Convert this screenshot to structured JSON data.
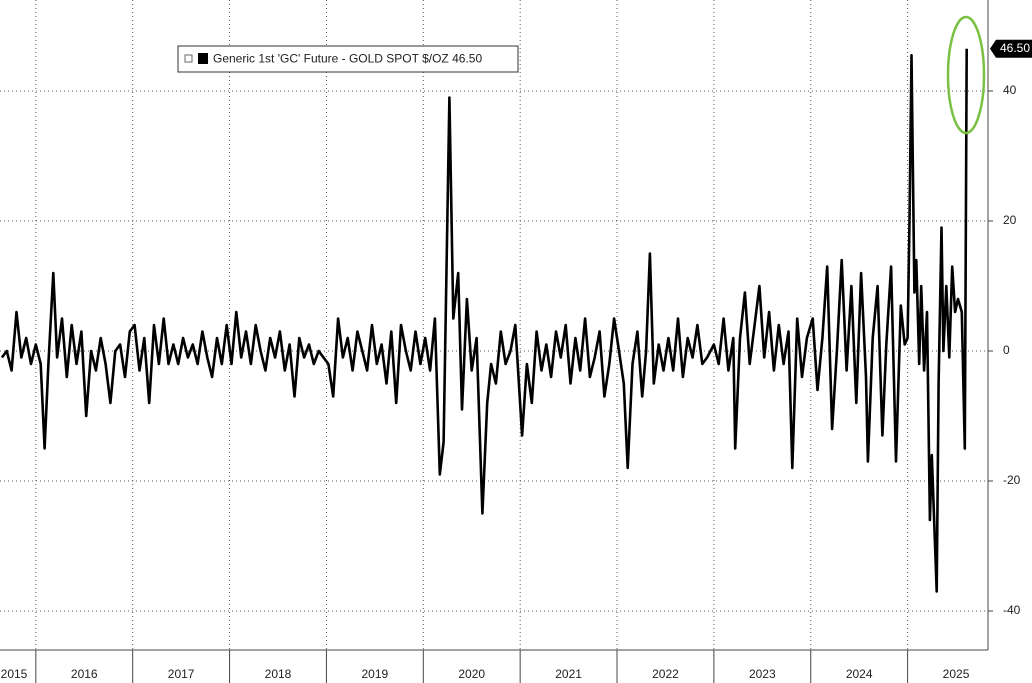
{
  "chart_data": {
    "type": "line",
    "series": [
      {
        "name": "Generic 1st 'GC' Future - GOLD SPOT $/OZ 46.50",
        "color": "#000000",
        "last_label": "46.50",
        "x": [
          2015.65,
          2015.7,
          2015.75,
          2015.8,
          2015.85,
          2015.9,
          2015.95,
          2016.0,
          2016.05,
          2016.09,
          2016.13,
          2016.18,
          2016.22,
          2016.27,
          2016.32,
          2016.37,
          2016.42,
          2016.47,
          2016.52,
          2016.57,
          2016.62,
          2016.67,
          2016.72,
          2016.77,
          2016.82,
          2016.87,
          2016.92,
          2016.97,
          2017.02,
          2017.07,
          2017.12,
          2017.17,
          2017.22,
          2017.27,
          2017.32,
          2017.37,
          2017.42,
          2017.47,
          2017.52,
          2017.57,
          2017.62,
          2017.67,
          2017.72,
          2017.77,
          2017.82,
          2017.87,
          2017.92,
          2017.97,
          2018.02,
          2018.07,
          2018.12,
          2018.17,
          2018.22,
          2018.27,
          2018.32,
          2018.37,
          2018.42,
          2018.47,
          2018.52,
          2018.57,
          2018.62,
          2018.67,
          2018.72,
          2018.77,
          2018.82,
          2018.87,
          2018.92,
          2018.97,
          2019.02,
          2019.07,
          2019.12,
          2019.17,
          2019.22,
          2019.27,
          2019.32,
          2019.37,
          2019.42,
          2019.47,
          2019.52,
          2019.57,
          2019.62,
          2019.67,
          2019.72,
          2019.77,
          2019.82,
          2019.87,
          2019.92,
          2019.97,
          2020.02,
          2020.07,
          2020.12,
          2020.17,
          2020.21,
          2020.27,
          2020.31,
          2020.36,
          2020.4,
          2020.45,
          2020.5,
          2020.55,
          2020.61,
          2020.66,
          2020.7,
          2020.75,
          2020.8,
          2020.85,
          2020.9,
          2020.95,
          2021.02,
          2021.07,
          2021.12,
          2021.17,
          2021.22,
          2021.27,
          2021.32,
          2021.37,
          2021.42,
          2021.47,
          2021.52,
          2021.57,
          2021.62,
          2021.67,
          2021.72,
          2021.77,
          2021.82,
          2021.87,
          2021.92,
          2021.97,
          2022.02,
          2022.07,
          2022.11,
          2022.16,
          2022.21,
          2022.26,
          2022.3,
          2022.34,
          2022.38,
          2022.43,
          2022.48,
          2022.53,
          2022.58,
          2022.63,
          2022.68,
          2022.73,
          2022.78,
          2022.83,
          2022.88,
          2022.93,
          2023.0,
          2023.05,
          2023.1,
          2023.15,
          2023.2,
          2023.22,
          2023.27,
          2023.32,
          2023.37,
          2023.42,
          2023.47,
          2023.52,
          2023.57,
          2023.62,
          2023.67,
          2023.72,
          2023.77,
          2023.81,
          2023.86,
          2023.91,
          2023.96,
          2024.02,
          2024.07,
          2024.12,
          2024.17,
          2024.22,
          2024.27,
          2024.32,
          2024.37,
          2024.42,
          2024.47,
          2024.52,
          2024.57,
          2024.59,
          2024.64,
          2024.69,
          2024.74,
          2024.78,
          2024.83,
          2024.88,
          2024.93,
          2024.97,
          2025.0,
          2025.02,
          2025.04,
          2025.07,
          2025.09,
          2025.12,
          2025.14,
          2025.17,
          2025.2,
          2025.23,
          2025.25,
          2025.3,
          2025.32,
          2025.35,
          2025.37,
          2025.4,
          2025.43,
          2025.46,
          2025.49,
          2025.52,
          2025.56,
          2025.59,
          2025.61
        ],
        "values": [
          -1,
          0,
          -3,
          6,
          -1,
          2,
          -2,
          1,
          -2,
          -15,
          -2,
          12,
          -1,
          5,
          -4,
          4,
          -2,
          3,
          -10,
          0,
          -3,
          2,
          -2,
          -8,
          0,
          1,
          -4,
          3,
          4,
          -3,
          2,
          -8,
          4,
          -2,
          5,
          -2,
          1,
          -2,
          2,
          -1,
          1,
          -2,
          3,
          -1,
          -4,
          2,
          -2,
          4,
          -2,
          6,
          -1,
          3,
          -2,
          4,
          0,
          -3,
          2,
          -1,
          3,
          -3,
          1,
          -7,
          2,
          -1,
          1,
          -2,
          0,
          -1,
          -2,
          -7,
          5,
          -1,
          2,
          -3,
          3,
          0,
          -3,
          4,
          -2,
          1,
          -5,
          3,
          -8,
          4,
          0,
          -3,
          3,
          -2,
          2,
          -3,
          5,
          -19,
          -14,
          39,
          5,
          12,
          -9,
          8,
          -3,
          2,
          -25,
          -8,
          -2,
          -5,
          3,
          -2,
          0,
          4,
          -13,
          -2,
          -8,
          3,
          -3,
          1,
          -4,
          3,
          -1,
          4,
          -5,
          2,
          -3,
          5,
          -4,
          -1,
          3,
          -7,
          -2,
          5,
          0,
          -5,
          -18,
          -2,
          3,
          -7,
          0,
          15,
          -5,
          1,
          -3,
          2,
          -3,
          5,
          -4,
          2,
          -1,
          4,
          -2,
          -1,
          1,
          -2,
          5,
          -3,
          2,
          -15,
          2,
          9,
          -2,
          4,
          10,
          -1,
          6,
          -3,
          4,
          -2,
          3,
          -18,
          5,
          -4,
          2,
          5,
          -6,
          2,
          13,
          -12,
          0,
          14,
          -3,
          10,
          -8,
          12,
          -4,
          -17,
          2,
          10,
          -13,
          1,
          13,
          -17,
          7,
          1,
          2,
          20,
          45.5,
          9,
          14,
          -2,
          10,
          -3,
          6,
          -26,
          -16,
          -37,
          -5,
          19,
          0,
          10,
          -1,
          13,
          6,
          8,
          6,
          -15,
          46.5
        ]
      }
    ],
    "xlim": [
      2015.63,
      2025.83
    ],
    "xticks": [
      {
        "value": 2015.5,
        "label": "2015"
      },
      {
        "value": 2016.5,
        "label": "2016"
      },
      {
        "value": 2017.5,
        "label": "2017"
      },
      {
        "value": 2018.5,
        "label": "2018"
      },
      {
        "value": 2019.5,
        "label": "2019"
      },
      {
        "value": 2020.5,
        "label": "2020"
      },
      {
        "value": 2021.5,
        "label": "2021"
      },
      {
        "value": 2022.5,
        "label": "2022"
      },
      {
        "value": 2023.5,
        "label": "2023"
      },
      {
        "value": 2024.5,
        "label": "2024"
      },
      {
        "value": 2025.5,
        "label": "2025"
      }
    ],
    "ylim": [
      -46,
      54
    ],
    "yticks": [
      -40,
      -20,
      0,
      20,
      40
    ],
    "grid": true
  }
}
